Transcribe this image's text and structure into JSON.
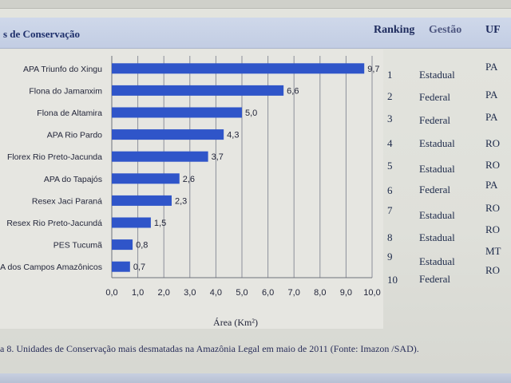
{
  "header": {
    "title": "s de Conservação",
    "columns": {
      "ranking": "Ranking",
      "gestao": "Gestão",
      "uf": "UF"
    }
  },
  "chart_data": {
    "type": "bar",
    "orientation": "horizontal",
    "categories": [
      "APA Triunfo do Xingu",
      "Flona do Jamanxim",
      "Flona de Altamira",
      "APA Rio Pardo",
      "Florex Rio Preto-Jacunda",
      "APA do Tapajós",
      "Resex Jaci Paraná",
      "Resex Rio Preto-Jacundá",
      "PES Tucumã",
      "NA dos Campos Amazônicos"
    ],
    "values": [
      9.7,
      6.6,
      5.0,
      4.3,
      3.7,
      2.6,
      2.3,
      1.5,
      0.8,
      0.7
    ],
    "value_labels": [
      "9,7",
      "6,6",
      "5,0",
      "4,3",
      "3,7",
      "2,6",
      "2,3",
      "1,5",
      "0,8",
      "0,7"
    ],
    "xlim": [
      0,
      10
    ],
    "xticks": [
      "0,0",
      "1,0",
      "2,0",
      "3,0",
      "4,0",
      "5,0",
      "6,0",
      "7,0",
      "8,0",
      "9,0",
      "10,0"
    ],
    "xlabel": "Área (Km²)",
    "grid": true,
    "bar_color": "#2f55c9"
  },
  "table": {
    "rankings": [
      "1",
      "2",
      "3",
      "4",
      "5",
      "6",
      "7",
      "8",
      "9",
      "10"
    ],
    "gestao": [
      "Estadual",
      "Federal",
      "Federal",
      "Estadual",
      "Estadual",
      "Federal",
      "Estadual",
      "Estadual",
      "Estadual",
      "Federal"
    ],
    "uf": [
      "PA",
      "PA",
      "PA",
      "RO",
      "RO",
      "PA",
      "RO",
      "RO",
      "MT",
      "RO"
    ]
  },
  "caption": "a 8. Unidades de Conservação mais desmatadas na Amazônia Legal em maio de 2011 (Fonte: Imazon /SAD)."
}
